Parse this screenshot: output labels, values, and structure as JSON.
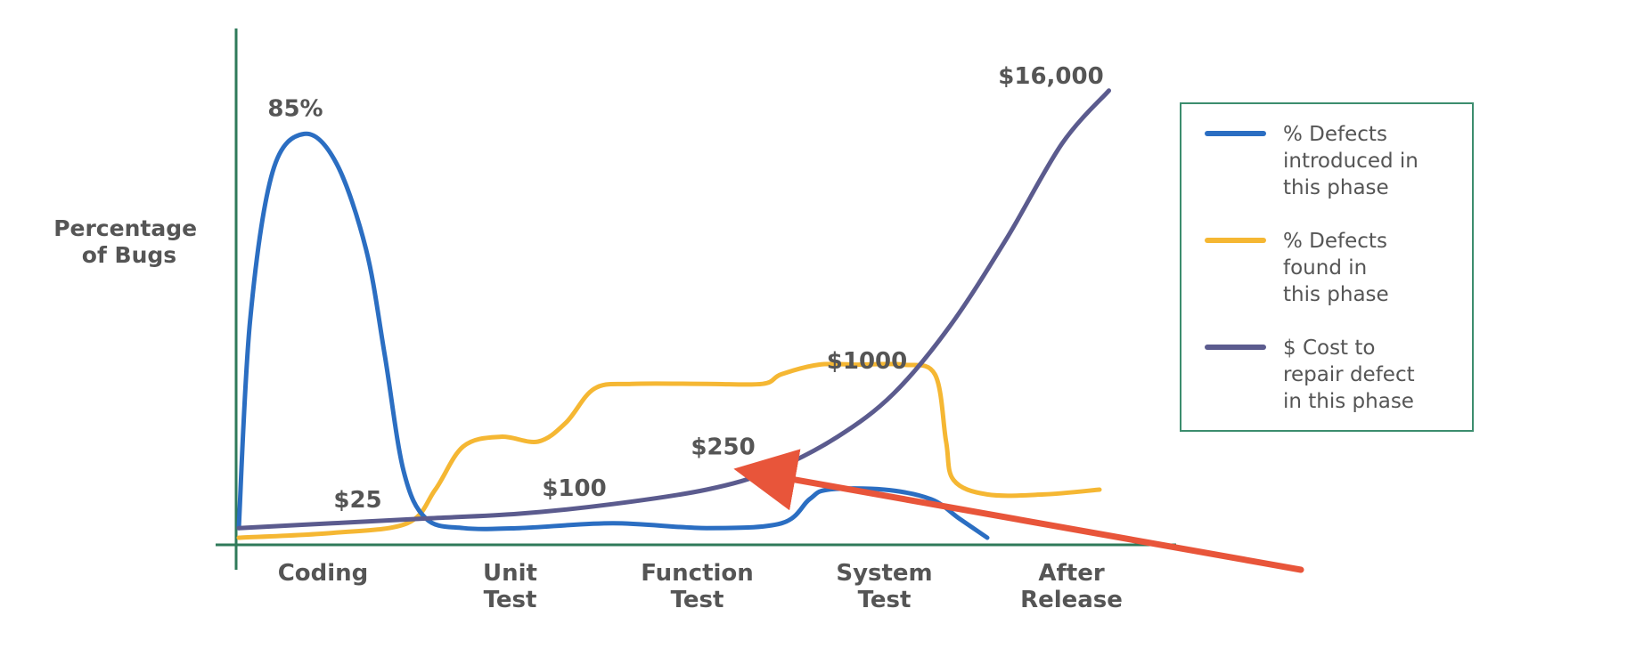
{
  "chart_data": {
    "type": "line",
    "ylabel": [
      "Percentage",
      "of Bugs"
    ],
    "categories": [
      [
        "Coding"
      ],
      [
        "Unit",
        "Test"
      ],
      [
        "Function",
        "Test"
      ],
      [
        "System",
        "Test"
      ],
      [
        "After",
        "Release"
      ]
    ],
    "x_range": [
      0,
      5
    ],
    "y_range": [
      0,
      100
    ],
    "grid": false,
    "legend_position": "top-right",
    "series": [
      {
        "name": [
          "% Defects",
          "introduced in",
          "this phase"
        ],
        "color": "#2b6ec2",
        "points": [
          [
            0,
            2
          ],
          [
            0.06,
            45
          ],
          [
            0.18,
            76
          ],
          [
            0.35,
            84
          ],
          [
            0.52,
            78
          ],
          [
            0.68,
            60
          ],
          [
            0.78,
            38
          ],
          [
            0.88,
            14
          ],
          [
            1,
            4
          ],
          [
            1.2,
            2
          ],
          [
            1.5,
            2
          ],
          [
            2,
            3
          ],
          [
            2.5,
            2
          ],
          [
            2.9,
            3
          ],
          [
            3.05,
            8
          ],
          [
            3.15,
            10
          ],
          [
            3.45,
            10
          ],
          [
            3.7,
            8
          ],
          [
            3.85,
            4
          ],
          [
            4,
            0
          ]
        ]
      },
      {
        "name": [
          "% Defects",
          "found in",
          "this phase"
        ],
        "color": "#f5b733",
        "points": [
          [
            0,
            0
          ],
          [
            0.5,
            1
          ],
          [
            0.9,
            3
          ],
          [
            1.05,
            10
          ],
          [
            1.2,
            19
          ],
          [
            1.4,
            21
          ],
          [
            1.6,
            20
          ],
          [
            1.75,
            24
          ],
          [
            1.9,
            31
          ],
          [
            2.1,
            32
          ],
          [
            2.5,
            32
          ],
          [
            2.8,
            32
          ],
          [
            2.9,
            34
          ],
          [
            3.1,
            36
          ],
          [
            3.3,
            36
          ],
          [
            3.55,
            36
          ],
          [
            3.72,
            34
          ],
          [
            3.78,
            20
          ],
          [
            3.82,
            12
          ],
          [
            4,
            9
          ],
          [
            4.3,
            9
          ],
          [
            4.6,
            10
          ]
        ]
      },
      {
        "name": [
          "$ Cost to",
          "repair defect",
          "in this phase"
        ],
        "color": "#5b5b8e",
        "points": [
          [
            0,
            2
          ],
          [
            0.5,
            3
          ],
          [
            1,
            4
          ],
          [
            1.5,
            5
          ],
          [
            2,
            7
          ],
          [
            2.5,
            10
          ],
          [
            2.85,
            14
          ],
          [
            3.2,
            21
          ],
          [
            3.5,
            30
          ],
          [
            3.8,
            44
          ],
          [
            4.1,
            62
          ],
          [
            4.4,
            82
          ],
          [
            4.65,
            93
          ]
        ]
      }
    ],
    "annotations": [
      {
        "text": "85%",
        "series": 0,
        "x": 0.35,
        "y": 84
      },
      {
        "text": "$25",
        "series": 2,
        "x": 0.35,
        "y": 3
      },
      {
        "text": "$100",
        "series": 2,
        "x": 1.65,
        "y": 5
      },
      {
        "text": "$250",
        "series": 2,
        "x": 2.85,
        "y": 14
      },
      {
        "text": "$1000",
        "series": 2,
        "x": 3.5,
        "y": 30
      },
      {
        "text": "$16,000",
        "series": 2,
        "x": 4.65,
        "y": 93
      }
    ],
    "arrow": {
      "color": "#e8553a",
      "target_series": 2,
      "target_x": 2.85,
      "target_y": 14
    }
  }
}
